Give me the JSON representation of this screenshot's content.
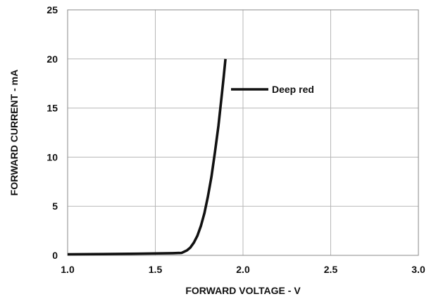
{
  "chart_data": {
    "type": "line",
    "xlabel": "FORWARD VOLTAGE - V",
    "ylabel": "FORWARD CURRENT - mA",
    "xlim": [
      1.0,
      3.0
    ],
    "ylim": [
      0,
      25
    ],
    "x_ticks": [
      "1.0",
      "1.5",
      "2.0",
      "2.5",
      "3.0"
    ],
    "y_ticks": [
      "0",
      "5",
      "10",
      "15",
      "20",
      "25"
    ],
    "grid": true,
    "legend_placement": "top-center",
    "series": [
      {
        "name": "Deep red",
        "color": "#111111",
        "points": [
          [
            1.0,
            0.1
          ],
          [
            1.2,
            0.13
          ],
          [
            1.4,
            0.17
          ],
          [
            1.6,
            0.22
          ],
          [
            1.65,
            0.25
          ],
          [
            1.68,
            0.5
          ],
          [
            1.7,
            0.8
          ],
          [
            1.72,
            1.3
          ],
          [
            1.74,
            2.0
          ],
          [
            1.76,
            3.0
          ],
          [
            1.78,
            4.3
          ],
          [
            1.8,
            6.0
          ],
          [
            1.82,
            8.0
          ],
          [
            1.84,
            10.5
          ],
          [
            1.86,
            13.2
          ],
          [
            1.88,
            16.5
          ],
          [
            1.89,
            18.2
          ],
          [
            1.9,
            20.0
          ]
        ]
      }
    ]
  }
}
